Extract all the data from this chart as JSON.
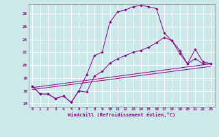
{
  "xlabel": "Windchill (Refroidissement éolien,°C)",
  "bg_color": "#cce8e8",
  "grid_color": "#aacccc",
  "line_color": "#880088",
  "xlim": [
    -0.5,
    23.5
  ],
  "ylim": [
    13.5,
    29.5
  ],
  "xticks": [
    0,
    1,
    2,
    3,
    4,
    5,
    6,
    7,
    8,
    9,
    10,
    11,
    12,
    13,
    14,
    15,
    16,
    17,
    18,
    19,
    20,
    21,
    22,
    23
  ],
  "yticks": [
    14,
    16,
    18,
    20,
    22,
    24,
    26,
    28
  ],
  "line1_x": [
    0,
    1,
    2,
    3,
    4,
    5,
    6,
    7,
    8,
    9,
    10,
    11,
    12,
    13,
    14,
    15,
    16,
    17,
    18,
    19,
    20,
    21,
    22,
    23
  ],
  "line1_y": [
    16.7,
    15.5,
    15.5,
    14.8,
    15.2,
    14.2,
    16.0,
    18.5,
    21.5,
    22.0,
    26.7,
    28.3,
    28.6,
    29.1,
    29.3,
    29.1,
    28.8,
    25.0,
    23.8,
    22.3,
    20.2,
    21.0,
    20.2,
    20.2
  ],
  "line2_x": [
    0,
    1,
    2,
    3,
    4,
    5,
    6,
    7,
    8,
    9,
    10,
    11,
    12,
    13,
    14,
    15,
    16,
    17,
    18,
    19,
    20,
    21,
    22,
    23
  ],
  "line2_y": [
    16.7,
    15.5,
    15.5,
    14.8,
    15.2,
    14.2,
    16.0,
    15.8,
    18.3,
    19.0,
    20.3,
    21.0,
    21.5,
    22.0,
    22.3,
    22.8,
    23.5,
    24.3,
    23.8,
    21.8,
    20.2,
    22.5,
    20.5,
    20.2
  ],
  "line3_x": [
    0,
    23
  ],
  "line3_y": [
    16.5,
    20.2
  ],
  "line4_x": [
    0,
    23
  ],
  "line4_y": [
    16.2,
    19.8
  ]
}
